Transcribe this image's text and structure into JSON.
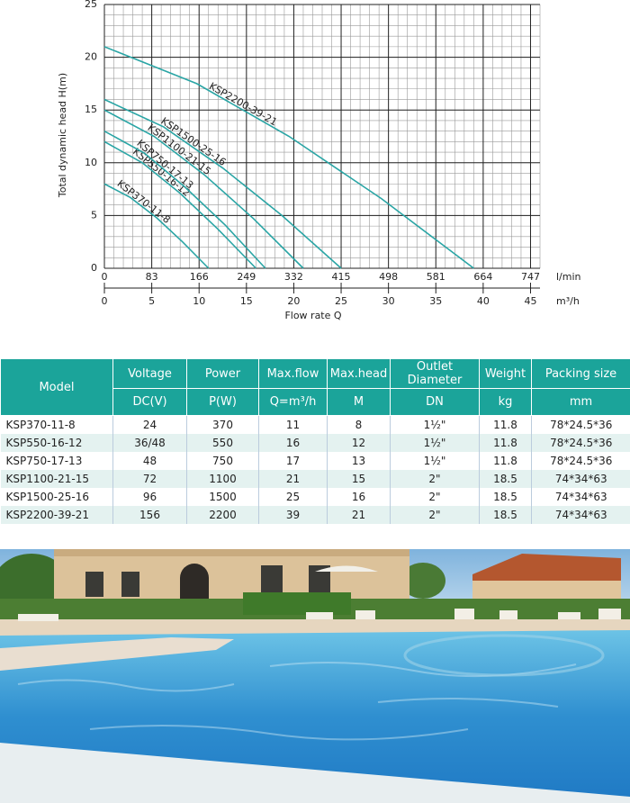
{
  "chart_data": {
    "type": "line",
    "y_label": "Total dynamic head H(m)",
    "x_label": "Flow rate Q",
    "x_unit": "m³/h",
    "x2_unit": "l/min",
    "xlim": [
      0,
      46
    ],
    "ylim": [
      0,
      25
    ],
    "x2lim": [
      0,
      763.6
    ],
    "xticks": [
      0,
      5,
      10,
      15,
      20,
      25,
      30,
      35,
      40,
      45
    ],
    "x2ticks": [
      0,
      83,
      166,
      249,
      332,
      415,
      498,
      581,
      664,
      747
    ],
    "yticks": [
      0,
      5,
      10,
      15,
      20,
      25
    ],
    "grid": true,
    "series": [
      {
        "name": "KSP370-11-8",
        "color": "#2aa5a5",
        "x": [
          0,
          2.75,
          5.5,
          8.25,
          11
        ],
        "values": [
          8,
          6.7,
          4.8,
          2.5,
          0
        ]
      },
      {
        "name": "KSP550-16-12",
        "color": "#2aa5a5",
        "x": [
          0,
          4,
          8,
          12,
          16
        ],
        "values": [
          12,
          10,
          7.1,
          3.7,
          0
        ]
      },
      {
        "name": "KSP750-17-13",
        "color": "#2aa5a5",
        "x": [
          0,
          4.25,
          8.5,
          12.75,
          17
        ],
        "values": [
          13,
          10.9,
          7.7,
          4.1,
          0
        ]
      },
      {
        "name": "KSP1100-21-15",
        "color": "#2aa5a5",
        "x": [
          0,
          5.25,
          10.5,
          15.75,
          21
        ],
        "values": [
          15,
          12.5,
          8.9,
          4.7,
          0
        ]
      },
      {
        "name": "KSP1500-25-16",
        "color": "#2aa5a5",
        "x": [
          0,
          6.25,
          12.5,
          18.75,
          25
        ],
        "values": [
          16,
          13.4,
          9.5,
          5,
          0
        ]
      },
      {
        "name": "KSP2200-39-21",
        "color": "#2aa5a5",
        "x": [
          0,
          9.75,
          19.5,
          29.25,
          39
        ],
        "values": [
          21,
          17.5,
          12.5,
          6.6,
          0
        ]
      }
    ]
  },
  "table": {
    "header1": [
      "Model",
      "Voltage",
      "Power",
      "Max.flow",
      "Max.head",
      "Outlet Diameter",
      "Weight",
      "Packing size"
    ],
    "header2": [
      "DC(V)",
      "P(W)",
      "Q=m³/h",
      "M",
      "DN",
      "kg",
      "mm"
    ],
    "rows": [
      [
        "KSP370-11-8",
        "24",
        "370",
        "11",
        "8",
        "1½\"",
        "11.8",
        "78*24.5*36"
      ],
      [
        "KSP550-16-12",
        "36/48",
        "550",
        "16",
        "12",
        "1½\"",
        "11.8",
        "78*24.5*36"
      ],
      [
        "KSP750-17-13",
        "48",
        "750",
        "17",
        "13",
        "1½\"",
        "11.8",
        "78*24.5*36"
      ],
      [
        "KSP1100-21-15",
        "72",
        "1100",
        "21",
        "15",
        "2\"",
        "18.5",
        "74*34*63"
      ],
      [
        "KSP1500-25-16",
        "96",
        "1500",
        "25",
        "16",
        "2\"",
        "18.5",
        "74*34*63"
      ],
      [
        "KSP2200-39-21",
        "156",
        "2200",
        "39",
        "21",
        "2\"",
        "18.5",
        "74*34*63"
      ]
    ]
  }
}
